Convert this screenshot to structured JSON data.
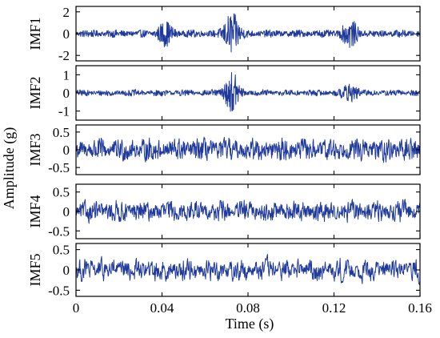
{
  "chart_data": {
    "type": "line",
    "title": "",
    "xlabel": "Time (s)",
    "ylabel": "Amplitude (g)",
    "xlim": [
      0,
      0.16
    ],
    "x_ticks": [
      0,
      0.04,
      0.08,
      0.12,
      0.16
    ],
    "x_tick_labels": [
      "0",
      "0.04",
      "0.08",
      "0.12",
      "0.16"
    ],
    "line_color": "#1f3a9c",
    "grid": false,
    "panels": [
      {
        "name": "IMF1",
        "ylim": [
          -2.5,
          2.5
        ],
        "y_ticks": [
          2,
          0,
          -2
        ],
        "y_tick_labels": [
          "2",
          "0",
          "-2"
        ],
        "signal": {
          "baseline_amplitude": 0.35,
          "bursts": [
            {
              "t": 0.0415,
              "amplitude": 0.9
            },
            {
              "t": 0.0725,
              "amplitude": 1.8
            },
            {
              "t": 0.1275,
              "amplitude": 1.1
            }
          ]
        }
      },
      {
        "name": "IMF2",
        "ylim": [
          -1.5,
          1.5
        ],
        "y_ticks": [
          1,
          0,
          -1
        ],
        "y_tick_labels": [
          "1",
          "0",
          "-1"
        ],
        "signal": {
          "baseline_amplitude": 0.2,
          "bursts": [
            {
              "t": 0.0725,
              "amplitude": 1.1
            },
            {
              "t": 0.1275,
              "amplitude": 0.45
            }
          ]
        }
      },
      {
        "name": "IMF3",
        "ylim": [
          -0.7,
          0.7
        ],
        "y_ticks": [
          0.5,
          0,
          -0.5
        ],
        "y_tick_labels": [
          "0.5",
          "0",
          "-0.5"
        ],
        "signal": {
          "baseline_amplitude": 0.4,
          "bursts": []
        }
      },
      {
        "name": "IMF4",
        "ylim": [
          -0.7,
          0.7
        ],
        "y_ticks": [
          0.5,
          0,
          -0.5
        ],
        "y_tick_labels": [
          "0.5",
          "0",
          "-0.5"
        ],
        "signal": {
          "baseline_amplitude": 0.38,
          "bursts": []
        }
      },
      {
        "name": "IMF5",
        "ylim": [
          -0.65,
          0.65
        ],
        "y_ticks": [
          0.5,
          0,
          -0.5
        ],
        "y_tick_labels": [
          "0.5",
          "0",
          "-0.5"
        ],
        "signal": {
          "baseline_amplitude": 0.45,
          "bursts": []
        }
      }
    ]
  }
}
